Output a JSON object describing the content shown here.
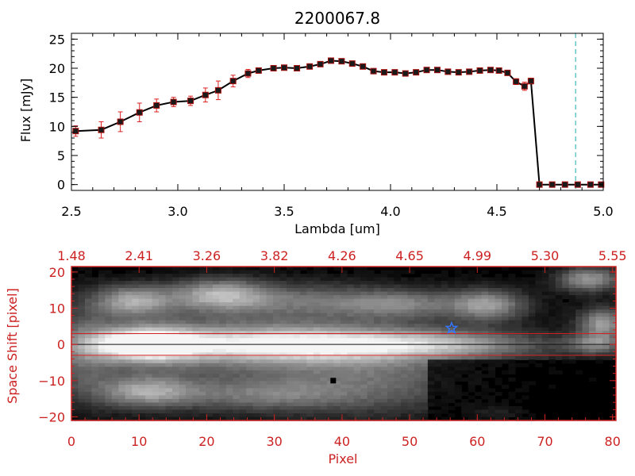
{
  "title": "2200067.8",
  "colors": {
    "axis": "#000000",
    "accent": "#cc2222",
    "errorbar": "#dd2020",
    "marker": "#1a1a1a",
    "cutoff": "#22aaaa",
    "star": "#3377ff",
    "image_bg": "#000000"
  },
  "chart_data": [
    {
      "type": "line",
      "title": "2200067.8",
      "xlabel": "Lambda [um]",
      "ylabel": "Flux [mJy]",
      "xlim": [
        2.5,
        5.0
      ],
      "ylim": [
        -1,
        26
      ],
      "xticks": [
        2.5,
        3.0,
        3.5,
        4.0,
        4.5,
        5.0
      ],
      "xtick_labels": [
        "2.5",
        "3.0",
        "3.5",
        "4.0",
        "4.5",
        "5.0"
      ],
      "yticks": [
        0,
        5,
        10,
        15,
        20,
        25
      ],
      "ytick_labels": [
        "0",
        "5",
        "10",
        "15",
        "20",
        "25"
      ],
      "cutoff_wavelength": 4.87,
      "series": [
        {
          "name": "Flux",
          "x": [
            2.52,
            2.64,
            2.73,
            2.82,
            2.9,
            2.98,
            3.06,
            3.13,
            3.19,
            3.26,
            3.33,
            3.38,
            3.45,
            3.5,
            3.56,
            3.62,
            3.67,
            3.72,
            3.77,
            3.82,
            3.87,
            3.92,
            3.97,
            4.02,
            4.07,
            4.12,
            4.17,
            4.22,
            4.27,
            4.32,
            4.37,
            4.42,
            4.47,
            4.51,
            4.55,
            4.59,
            4.63,
            4.66,
            4.7,
            4.76,
            4.82,
            4.88,
            4.94,
            4.99
          ],
          "y": [
            9.2,
            9.4,
            10.8,
            12.4,
            13.6,
            14.2,
            14.4,
            15.4,
            16.2,
            17.8,
            19.1,
            19.6,
            20.0,
            20.1,
            20.0,
            20.3,
            20.7,
            21.3,
            21.2,
            20.8,
            20.3,
            19.5,
            19.3,
            19.3,
            19.1,
            19.3,
            19.7,
            19.7,
            19.4,
            19.3,
            19.4,
            19.6,
            19.7,
            19.6,
            19.2,
            17.7,
            16.9,
            17.8,
            0.0,
            0.0,
            0.0,
            0.0,
            0.0,
            0.0
          ],
          "err": [
            0.9,
            1.4,
            1.7,
            1.6,
            1.1,
            0.8,
            0.8,
            1.2,
            1.6,
            1.0,
            0.7,
            0.4,
            0.3,
            0.3,
            0.3,
            0.3,
            0.3,
            0.2,
            0.2,
            0.3,
            0.3,
            0.3,
            0.3,
            0.3,
            0.4,
            0.4,
            0.3,
            0.3,
            0.3,
            0.3,
            0.3,
            0.3,
            0.3,
            0.3,
            0.4,
            0.5,
            0.7,
            0.5,
            0.2,
            0.2,
            0.2,
            0.2,
            0.2,
            0.2
          ]
        }
      ]
    },
    {
      "type": "heatmap",
      "xlabel": "Pixel",
      "ylabel": "Space Shift [pixel]",
      "xlim": [
        0,
        80.5
      ],
      "ylim": [
        -21,
        21.5
      ],
      "xticks": [
        0,
        10,
        20,
        30,
        40,
        50,
        60,
        70,
        80
      ],
      "xtick_labels": [
        "0",
        "10",
        "20",
        "30",
        "40",
        "50",
        "60",
        "70",
        "80"
      ],
      "yticks": [
        -20,
        -10,
        0,
        10,
        20
      ],
      "ytick_labels": [
        "−20",
        "−10",
        "0",
        "10",
        "20"
      ],
      "top_axis_ticks": [
        0,
        10,
        20,
        30,
        40,
        50,
        60,
        70,
        80
      ],
      "top_axis_labels": [
        "1.48",
        "2.41",
        "3.26",
        "3.82",
        "4.26",
        "4.65",
        "4.99",
        "5.30",
        "5.55"
      ],
      "extraction_window": [
        -3,
        3
      ],
      "trace_center": 0,
      "star_marker": {
        "pixel": 56.2,
        "shift": 4.5
      },
      "square_marker": {
        "pixel": 38.7,
        "shift": -10
      },
      "blobs": [
        {
          "pixel": 11,
          "shift": 0,
          "wx": 5,
          "wy": 3,
          "amp": 0.95
        },
        {
          "pixel": 26,
          "shift": 0,
          "wx": 15,
          "wy": 3.5,
          "amp": 0.55
        },
        {
          "pixel": 42,
          "shift": 0,
          "wx": 14,
          "wy": 3.2,
          "amp": 0.42
        },
        {
          "pixel": 58,
          "shift": 0,
          "wx": 10,
          "wy": 2.5,
          "amp": 0.3
        },
        {
          "pixel": 20,
          "shift": -2,
          "wx": 30,
          "wy": 11,
          "amp": 0.28
        },
        {
          "pixel": 45,
          "shift": -10,
          "wx": 12,
          "wy": 7,
          "amp": 0.28
        },
        {
          "pixel": 9,
          "shift": 12,
          "wx": 4,
          "wy": 3,
          "amp": 0.55
        },
        {
          "pixel": 22,
          "shift": 14,
          "wx": 5,
          "wy": 3,
          "amp": 0.5
        },
        {
          "pixel": 35,
          "shift": 12,
          "wx": 13,
          "wy": 3.5,
          "amp": 0.35
        },
        {
          "pixel": 49,
          "shift": 11,
          "wx": 6,
          "wy": 2.5,
          "amp": 0.3
        },
        {
          "pixel": 62,
          "shift": 11,
          "wx": 4,
          "wy": 3,
          "amp": 0.55
        },
        {
          "pixel": 77,
          "shift": 18,
          "wx": 3.5,
          "wy": 2.5,
          "amp": 0.6
        },
        {
          "pixel": 79,
          "shift": 6,
          "wx": 2.5,
          "wy": 3,
          "amp": 0.6
        },
        {
          "pixel": 78,
          "shift": 0,
          "wx": 3,
          "wy": 2,
          "amp": 0.45
        },
        {
          "pixel": 11,
          "shift": -13,
          "wx": 5,
          "wy": 3,
          "amp": 0.5
        },
        {
          "pixel": 28,
          "shift": -14,
          "wx": 10,
          "wy": 3,
          "amp": 0.3
        },
        {
          "pixel": 63,
          "shift": -19,
          "wx": 3,
          "wy": 1.5,
          "amp": 0.45
        },
        {
          "pixel": 2,
          "shift": -2,
          "wx": 3,
          "wy": 9,
          "amp": 0.2
        }
      ]
    }
  ]
}
